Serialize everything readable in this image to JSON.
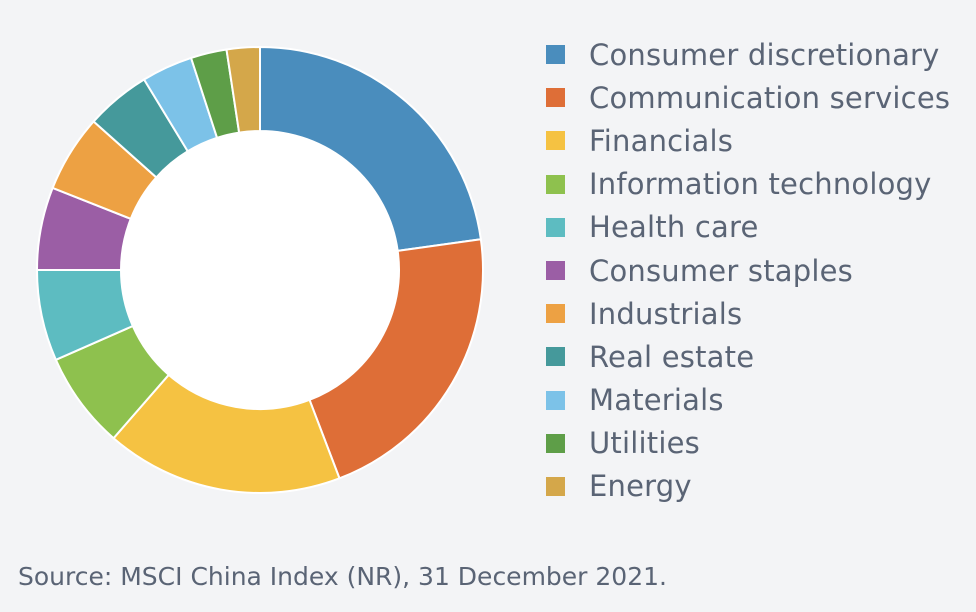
{
  "chart_data": {
    "type": "pie",
    "variant": "donut",
    "title": "",
    "legend_position": "right",
    "series": [
      {
        "name": "Consumer discretionary",
        "value": 22.8,
        "color": "#4a8dbd"
      },
      {
        "name": "Communication services",
        "value": 21.4,
        "color": "#de6e37"
      },
      {
        "name": "Financials",
        "value": 17.2,
        "color": "#f5c242"
      },
      {
        "name": "Information technology",
        "value": 7.0,
        "color": "#8ec14e"
      },
      {
        "name": "Health care",
        "value": 6.6,
        "color": "#5dbcc1"
      },
      {
        "name": "Consumer staples",
        "value": 6.0,
        "color": "#9b5ea5"
      },
      {
        "name": "Industrials",
        "value": 5.6,
        "color": "#eda143"
      },
      {
        "name": "Real estate",
        "value": 4.7,
        "color": "#45999b"
      },
      {
        "name": "Materials",
        "value": 3.7,
        "color": "#7cc2e8"
      },
      {
        "name": "Utilities",
        "value": 2.6,
        "color": "#5e9e48"
      },
      {
        "name": "Energy",
        "value": 2.4,
        "color": "#d4a74a"
      }
    ]
  },
  "footer": {
    "source": "Source: MSCI China Index (NR), 31 December 2021."
  },
  "colors": {
    "background": "#f3f4f6",
    "text": "#5a6475",
    "inner_hole": "#ffffff"
  }
}
